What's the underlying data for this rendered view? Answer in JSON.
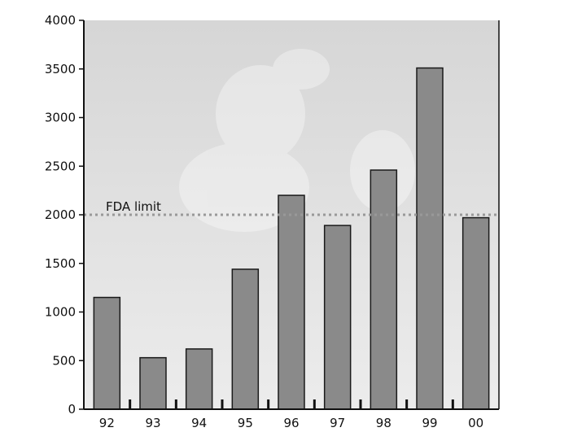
{
  "chart_data": {
    "type": "bar",
    "categories": [
      "92",
      "93",
      "94",
      "95",
      "96",
      "97",
      "98",
      "99",
      "00"
    ],
    "values": [
      1150,
      530,
      620,
      1440,
      2200,
      1890,
      2460,
      3510,
      1970
    ],
    "ylim": [
      0,
      4000
    ],
    "yticks": [
      0,
      500,
      1000,
      1500,
      2000,
      2500,
      3000,
      3500,
      4000
    ],
    "ytick_labels": [
      "0",
      "500",
      "1000",
      "1500",
      "2000",
      "2500",
      "3000",
      "3500",
      "4000"
    ],
    "reference_line": {
      "value": 2000,
      "label": "FDA limit"
    },
    "grid": false,
    "colors": {
      "bar": "#8a8a8a",
      "bar_stroke": "#1a1a1a",
      "plot_background": "#dedede",
      "reference_line": "#999999"
    }
  }
}
